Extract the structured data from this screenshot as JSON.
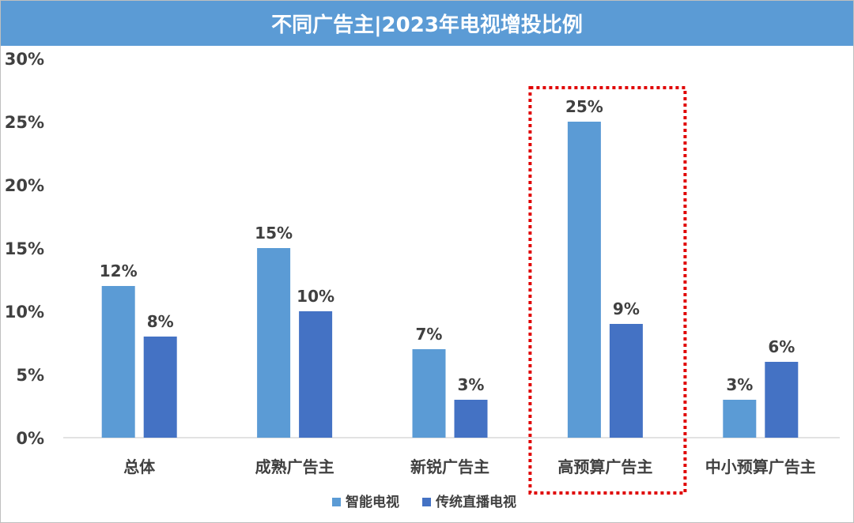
{
  "chart_data": {
    "type": "bar",
    "title": "不同广告主|2023年电视增投比例",
    "categories": [
      "总体",
      "成熟广告主",
      "新锐广告主",
      "高预算广告主",
      "中小预算广告主"
    ],
    "series": [
      {
        "name": "智能电视",
        "values": [
          12,
          15,
          7,
          25,
          3
        ],
        "labels": [
          "12%",
          "15%",
          "7%",
          "25%",
          "3%"
        ],
        "color": "#5b9bd5"
      },
      {
        "name": "传统直播电视",
        "values": [
          8,
          10,
          3,
          9,
          6
        ],
        "labels": [
          "8%",
          "10%",
          "3%",
          "9%",
          "6%"
        ],
        "color": "#4472c4"
      }
    ],
    "ylim": [
      0,
      30
    ],
    "yticks": [
      0,
      5,
      10,
      15,
      20,
      25,
      30
    ],
    "ytick_labels": [
      "0%",
      "5%",
      "10%",
      "15%",
      "20%",
      "25%",
      "30%"
    ],
    "xlabel": "",
    "ylabel": "",
    "grid": false,
    "legend": "bottom-center",
    "highlight": {
      "category": "高预算广告主",
      "style": "red dotted box",
      "color": "#e00000"
    }
  }
}
